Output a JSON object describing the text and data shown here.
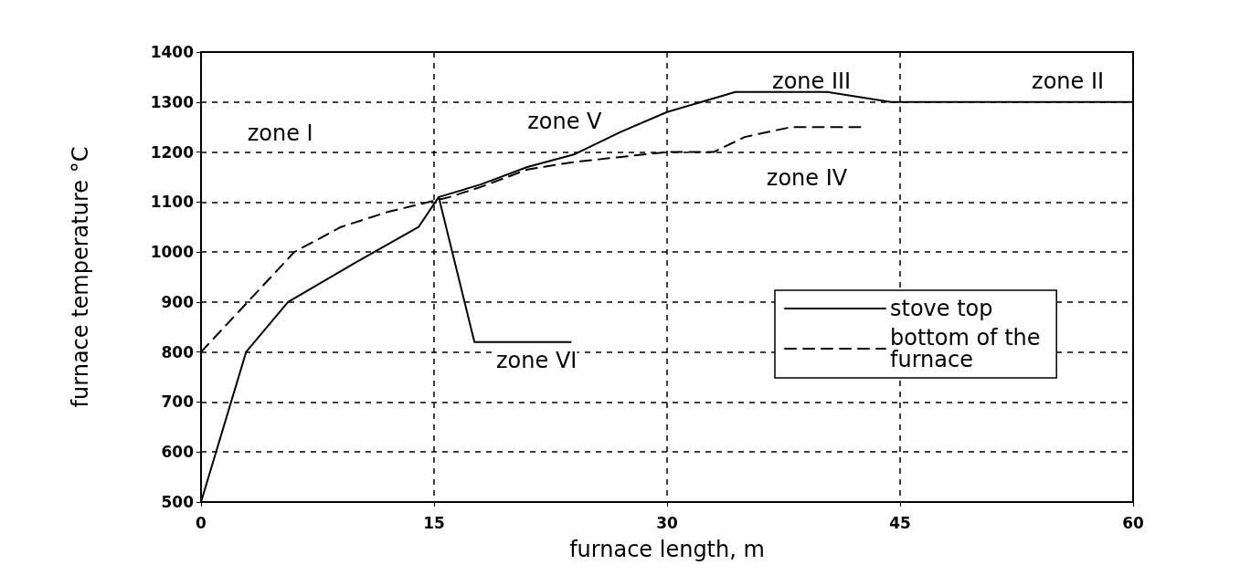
{
  "chart_data": {
    "type": "line",
    "xlabel": "furnace length, m",
    "ylabel": "furnace temperature °C",
    "xlim": [
      0,
      60
    ],
    "xticks": [
      0,
      15,
      30,
      45,
      60
    ],
    "ylim": [
      500,
      1400
    ],
    "yticks": [
      500,
      600,
      700,
      800,
      900,
      1000,
      1100,
      1200,
      1300,
      1400
    ],
    "grid": true,
    "legend": "right",
    "marker": "none",
    "series": [
      {
        "name": "stove top",
        "color": "#000000",
        "line_style": "solid",
        "x": [
          0,
          2.9,
          5.6,
          10,
          14,
          15.3,
          17.6,
          23.8,
          null,
          15.3,
          18,
          21,
          24,
          27,
          30,
          34.4,
          40.3,
          44.4,
          60
        ],
        "values": [
          500,
          800,
          900,
          980,
          1050,
          1110,
          820,
          820,
          null,
          1110,
          1135,
          1170,
          1195,
          1240,
          1280,
          1320,
          1320,
          1300,
          1300
        ]
      },
      {
        "name": "bottom of the furnace",
        "color": "#000000",
        "line_style": "dashed",
        "x": [
          0,
          3,
          6,
          9,
          12,
          16,
          18,
          21,
          24,
          30,
          33,
          35,
          38,
          42.6
        ],
        "values": [
          800,
          900,
          1000,
          1050,
          1080,
          1110,
          1130,
          1165,
          1180,
          1200,
          1200,
          1230,
          1250,
          1250
        ]
      }
    ],
    "annotations": [
      "zone I",
      "zone V",
      "zone III",
      "zone II",
      "zone IV",
      "zone VI"
    ]
  }
}
